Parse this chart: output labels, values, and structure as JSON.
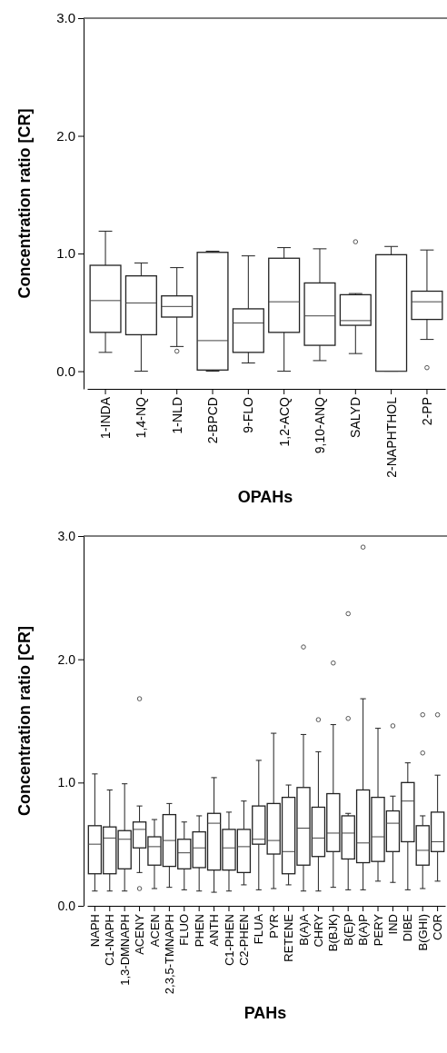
{
  "chart_data": [
    {
      "type": "box",
      "xlabel": "OPAHs",
      "ylabel": "Concentration ratio [CR]",
      "categories": [
        "1-INDA",
        "1,4-NQ",
        "1-NLD",
        "2-BPCD",
        "9-FLO",
        "1,2-ACQ",
        "9,10-ANQ",
        "SALYD",
        "2-NAPHTHOL",
        "2-PP"
      ],
      "ylim": [
        -0.15,
        3.0
      ],
      "yticks": [
        {
          "value": 0,
          "label": "0.0"
        },
        {
          "value": 1,
          "label": "1.0"
        },
        {
          "value": 2,
          "label": "2.0"
        },
        {
          "value": 3,
          "label": "3.0"
        }
      ],
      "grid": false,
      "boxes": [
        {
          "low": 0.16,
          "q1": 0.33,
          "median": 0.6,
          "q3": 0.9,
          "high": 1.19
        },
        {
          "low": 0.0,
          "q1": 0.31,
          "median": 0.58,
          "q3": 0.81,
          "high": 0.92
        },
        {
          "low": 0.21,
          "q1": 0.46,
          "median": 0.55,
          "q3": 0.64,
          "high": 0.88,
          "outliers": [
            0.17
          ]
        },
        {
          "low": 0.0,
          "q1": 0.01,
          "median": 0.26,
          "q3": 1.01,
          "high": 1.02
        },
        {
          "low": 0.07,
          "q1": 0.16,
          "median": 0.41,
          "q3": 0.53,
          "high": 0.98
        },
        {
          "low": 0.0,
          "q1": 0.33,
          "median": 0.59,
          "q3": 0.96,
          "high": 1.05
        },
        {
          "low": 0.09,
          "q1": 0.22,
          "median": 0.47,
          "q3": 0.75,
          "high": 1.04
        },
        {
          "low": 0.15,
          "q1": 0.39,
          "median": 0.43,
          "q3": 0.65,
          "high": 0.66,
          "outliers": [
            1.1
          ]
        },
        {
          "low": 0.0,
          "q1": 0.0,
          "median": 0.0,
          "q3": 0.99,
          "high": 1.06
        },
        {
          "low": 0.27,
          "q1": 0.44,
          "median": 0.59,
          "q3": 0.68,
          "high": 1.03,
          "outliers": [
            0.03
          ]
        }
      ]
    },
    {
      "type": "box",
      "xlabel": "PAHs",
      "ylabel": "Concentration ratio [CR]",
      "categories": [
        "NAPH",
        "C1-NAPH",
        "1,3-DMNAPH",
        "ACENY",
        "ACEN",
        "2,3,5-TMNAPH",
        "FLUO",
        "PHEN",
        "ANTH",
        "C1-PHEN",
        "C2-PHEN",
        "FLUA",
        "PYR",
        "RETENE",
        "B(A)A",
        "CHRY",
        "B(BJK)",
        "B(E)P",
        "B(A)P",
        "PERY",
        "IND",
        "DIBE",
        "B(GHI)",
        "COR"
      ],
      "ylim": [
        0,
        3.0
      ],
      "yticks": [
        {
          "value": 0,
          "label": "0.0"
        },
        {
          "value": 1,
          "label": "1.0"
        },
        {
          "value": 2,
          "label": "2.0"
        },
        {
          "value": 3,
          "label": "3.0"
        }
      ],
      "grid": false,
      "boxes": [
        {
          "low": 0.12,
          "q1": 0.26,
          "median": 0.5,
          "q3": 0.65,
          "high": 1.07
        },
        {
          "low": 0.12,
          "q1": 0.26,
          "median": 0.55,
          "q3": 0.64,
          "high": 0.94
        },
        {
          "low": 0.12,
          "q1": 0.3,
          "median": 0.54,
          "q3": 0.61,
          "high": 0.99
        },
        {
          "low": 0.27,
          "q1": 0.47,
          "median": 0.62,
          "q3": 0.68,
          "high": 0.81,
          "outliers": [
            1.68,
            0.14
          ]
        },
        {
          "low": 0.14,
          "q1": 0.33,
          "median": 0.48,
          "q3": 0.56,
          "high": 0.7
        },
        {
          "low": 0.15,
          "q1": 0.32,
          "median": 0.53,
          "q3": 0.74,
          "high": 0.83
        },
        {
          "low": 0.13,
          "q1": 0.3,
          "median": 0.43,
          "q3": 0.54,
          "high": 0.68
        },
        {
          "low": 0.12,
          "q1": 0.31,
          "median": 0.47,
          "q3": 0.6,
          "high": 0.73
        },
        {
          "low": 0.11,
          "q1": 0.29,
          "median": 0.67,
          "q3": 0.75,
          "high": 1.04
        },
        {
          "low": 0.12,
          "q1": 0.29,
          "median": 0.47,
          "q3": 0.62,
          "high": 0.76
        },
        {
          "low": 0.17,
          "q1": 0.27,
          "median": 0.48,
          "q3": 0.62,
          "high": 0.85
        },
        {
          "low": 0.13,
          "q1": 0.5,
          "median": 0.54,
          "q3": 0.81,
          "high": 1.18
        },
        {
          "low": 0.14,
          "q1": 0.42,
          "median": 0.53,
          "q3": 0.83,
          "high": 1.4
        },
        {
          "low": 0.17,
          "q1": 0.26,
          "median": 0.44,
          "q3": 0.88,
          "high": 0.98
        },
        {
          "low": 0.12,
          "q1": 0.33,
          "median": 0.63,
          "q3": 0.96,
          "high": 1.39,
          "outliers": [
            2.1
          ]
        },
        {
          "low": 0.12,
          "q1": 0.4,
          "median": 0.55,
          "q3": 0.8,
          "high": 1.25,
          "outliers": [
            1.51
          ]
        },
        {
          "low": 0.15,
          "q1": 0.44,
          "median": 0.59,
          "q3": 0.91,
          "high": 1.47,
          "outliers": [
            1.97
          ]
        },
        {
          "low": 0.13,
          "q1": 0.38,
          "median": 0.59,
          "q3": 0.73,
          "high": 0.75,
          "outliers": [
            2.37,
            1.52
          ]
        },
        {
          "low": 0.13,
          "q1": 0.35,
          "median": 0.51,
          "q3": 0.94,
          "high": 1.68,
          "outliers": [
            2.91
          ]
        },
        {
          "low": 0.2,
          "q1": 0.36,
          "median": 0.56,
          "q3": 0.88,
          "high": 1.44
        },
        {
          "low": 0.19,
          "q1": 0.44,
          "median": 0.67,
          "q3": 0.77,
          "high": 0.89,
          "outliers": [
            1.46
          ]
        },
        {
          "low": 0.13,
          "q1": 0.52,
          "median": 0.85,
          "q3": 1.0,
          "high": 1.16
        },
        {
          "low": 0.14,
          "q1": 0.33,
          "median": 0.45,
          "q3": 0.65,
          "high": 0.73,
          "outliers": [
            1.55,
            1.24
          ]
        },
        {
          "low": 0.2,
          "q1": 0.44,
          "median": 0.52,
          "q3": 0.76,
          "high": 1.06,
          "outliers": [
            1.55
          ]
        }
      ]
    }
  ]
}
